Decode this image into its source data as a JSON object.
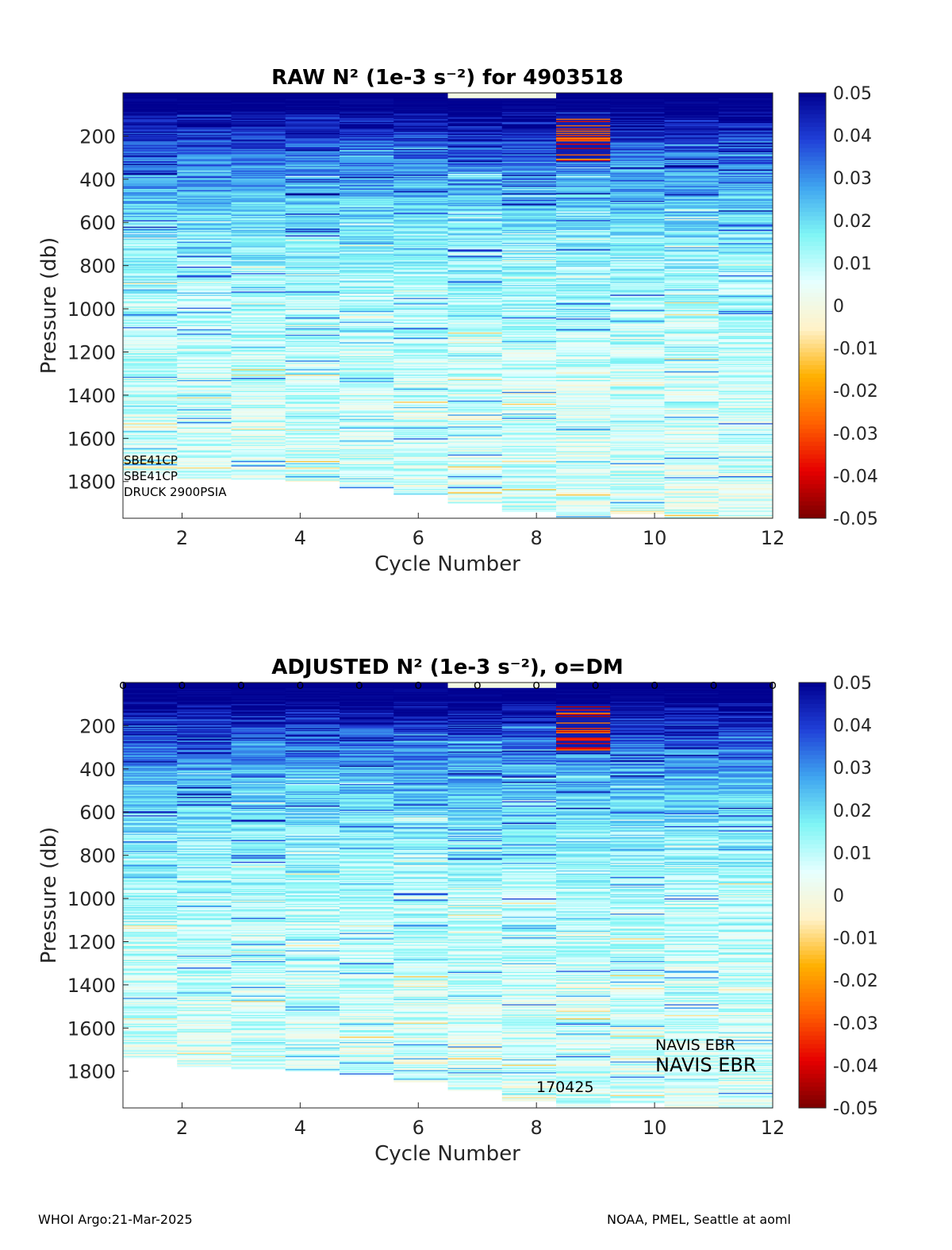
{
  "colormap": {
    "stops": [
      "#7a0000",
      "#e60000",
      "#ff6000",
      "#ffb000",
      "#fff2c8",
      "#e6ffff",
      "#7ff5f5",
      "#3fa5f0",
      "#2040d8",
      "#000090"
    ]
  },
  "footer": {
    "left": "WHOI Argo:21-Mar-2025",
    "right": "NOAA, PMEL, Seattle at aoml"
  },
  "chart_data": [
    {
      "type": "heatmap",
      "title": "RAW N² (1e-3 s⁻²) for 4903518",
      "xlabel": "Cycle Number",
      "ylabel": "Pressure (db)",
      "xlim": [
        1,
        12
      ],
      "ylim": [
        0,
        1970
      ],
      "y_reversed": true,
      "xticks": [
        2,
        4,
        6,
        8,
        10,
        12
      ],
      "yticks": [
        200,
        400,
        600,
        800,
        1000,
        1200,
        1400,
        1600,
        1800
      ],
      "colorbar": {
        "min": -0.05,
        "max": 0.05,
        "ticks": [
          0.05,
          0.04,
          0.03,
          0.02,
          0.01,
          0,
          -0.01,
          -0.02,
          -0.03,
          -0.04,
          -0.05
        ]
      },
      "cycles": [
        1,
        2,
        3,
        4,
        5,
        6,
        7,
        8,
        9,
        10,
        11,
        12
      ],
      "max_pressure": [
        1770,
        1790,
        1790,
        1800,
        1830,
        1860,
        1900,
        1940,
        1970,
        1950,
        1970,
        1970
      ],
      "surface_layer_value": 0.05,
      "annotations": [
        "SBE41CP",
        "SBE41CP",
        "DRUCK 2900PSIA"
      ],
      "dm_markers": false
    },
    {
      "type": "heatmap",
      "title": "ADJUSTED N² (1e-3 s⁻²), o=DM",
      "xlabel": "Cycle Number",
      "ylabel": "Pressure (db)",
      "xlim": [
        1,
        12
      ],
      "ylim": [
        0,
        1970
      ],
      "y_reversed": true,
      "xticks": [
        2,
        4,
        6,
        8,
        10,
        12
      ],
      "yticks": [
        200,
        400,
        600,
        800,
        1000,
        1200,
        1400,
        1600,
        1800
      ],
      "colorbar": {
        "min": -0.05,
        "max": 0.05,
        "ticks": [
          0.05,
          0.04,
          0.03,
          0.02,
          0.01,
          0,
          -0.01,
          -0.02,
          -0.03,
          -0.04,
          -0.05
        ]
      },
      "cycles": [
        1,
        2,
        3,
        4,
        5,
        6,
        7,
        8,
        9,
        10,
        11,
        12
      ],
      "max_pressure": [
        1740,
        1780,
        1790,
        1800,
        1820,
        1850,
        1890,
        1940,
        1970,
        1950,
        1970,
        1970
      ],
      "surface_layer_value": 0.05,
      "annotations": [
        "NAVIS EBR",
        "NAVIS EBR",
        "170425"
      ],
      "dm_markers": true,
      "dm_marker_label": "o"
    }
  ]
}
